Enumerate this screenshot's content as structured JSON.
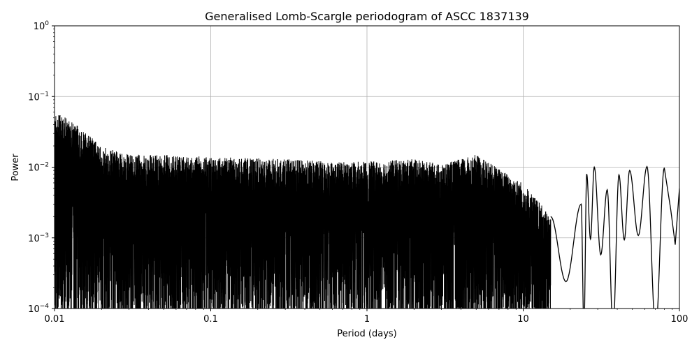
{
  "chart_data": {
    "type": "line",
    "title": "Generalised Lomb-Scargle periodogram of ASCC 1837139",
    "xlabel": "Period (days)",
    "ylabel": "Power",
    "xscale": "log",
    "yscale": "log",
    "xlim": [
      0.01,
      100
    ],
    "ylim": [
      0.0001,
      1
    ],
    "grid": true,
    "line_color": "#000000",
    "grid_color": "#b0b0b0",
    "x_ticks": [
      {
        "value": 0.01,
        "label": "0.01"
      },
      {
        "value": 0.1,
        "label": "0.1"
      },
      {
        "value": 1,
        "label": "1"
      },
      {
        "value": 10,
        "label": "10"
      },
      {
        "value": 100,
        "label": "100"
      }
    ],
    "y_ticks": [
      {
        "value": 0.0001,
        "base": "10",
        "exponent": "−4"
      },
      {
        "value": 0.001,
        "base": "10",
        "exponent": "−3"
      },
      {
        "value": 0.01,
        "base": "10",
        "exponent": "−2"
      },
      {
        "value": 0.1,
        "base": "10",
        "exponent": "−1"
      },
      {
        "value": 1,
        "base": "10",
        "exponent": "0"
      }
    ],
    "envelope": [
      {
        "period": 0.01,
        "power": 0.06
      },
      {
        "period": 0.013,
        "power": 0.045
      },
      {
        "period": 0.016,
        "power": 0.03
      },
      {
        "period": 0.02,
        "power": 0.02
      },
      {
        "period": 0.03,
        "power": 0.015
      },
      {
        "period": 0.05,
        "power": 0.015
      },
      {
        "period": 0.1,
        "power": 0.014
      },
      {
        "period": 0.3,
        "power": 0.013
      },
      {
        "period": 0.6,
        "power": 0.012
      },
      {
        "period": 1.0,
        "power": 0.012
      },
      {
        "period": 2.0,
        "power": 0.013
      },
      {
        "period": 3.0,
        "power": 0.011
      },
      {
        "period": 5.0,
        "power": 0.015
      },
      {
        "period": 8.0,
        "power": 0.008
      },
      {
        "period": 10.0,
        "power": 0.006
      },
      {
        "period": 15.0,
        "power": 0.002
      }
    ],
    "peaks": [
      {
        "period": 1.7,
        "power": 0.017
      },
      {
        "period": 2.15,
        "power": 0.018
      },
      {
        "period": 4.9,
        "power": 0.018
      },
      {
        "period": 7.5,
        "power": 0.0085
      },
      {
        "period": 11.5,
        "power": 0.0078
      },
      {
        "period": 23.5,
        "power": 0.003
      },
      {
        "period": 25.5,
        "power": 0.008
      },
      {
        "period": 28.5,
        "power": 0.01
      },
      {
        "period": 34.5,
        "power": 0.0048
      },
      {
        "period": 41.0,
        "power": 0.0078
      },
      {
        "period": 48.0,
        "power": 0.009
      },
      {
        "period": 62.0,
        "power": 0.0102
      },
      {
        "period": 80.0,
        "power": 0.0098
      }
    ]
  }
}
